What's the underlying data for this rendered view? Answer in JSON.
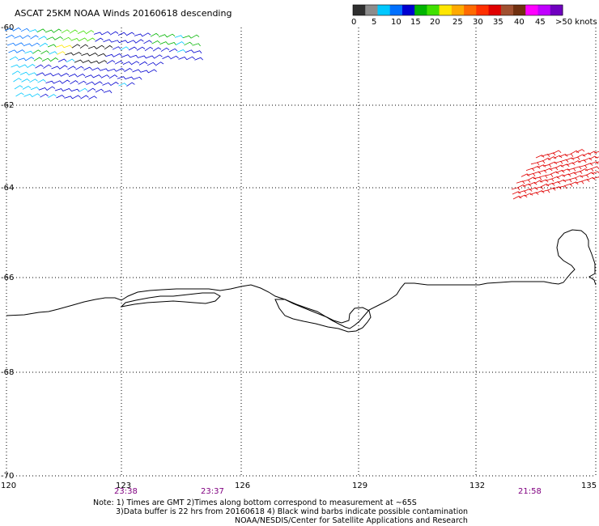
{
  "title": "ASCAT 25KM NOAA Winds 20160618 descending",
  "colorbar": {
    "labels": [
      "0",
      "5",
      "10",
      "15",
      "20",
      "25",
      "30",
      "35",
      "40",
      "45",
      ">50 knots"
    ],
    "colors": [
      "#2f2f2f",
      "#8c8c8c",
      "#00c8ff",
      "#0070ff",
      "#0000d0",
      "#00b400",
      "#40e000",
      "#ffe600",
      "#ffaa00",
      "#ff6a00",
      "#ff3000",
      "#e00000",
      "#a05030",
      "#703010",
      "#ff00ff",
      "#c000ff",
      "#7000c0"
    ]
  },
  "lat_labels": [
    "-60",
    "-62",
    "-64",
    "-66",
    "-68",
    "-70"
  ],
  "lon_labels": [
    "120",
    "123",
    "126",
    "129",
    "132",
    "135"
  ],
  "times": [
    "23:38",
    "23:37",
    "21:58"
  ],
  "notes": [
    "Note: 1) Times are GMT 2)Times along bottom correspond to measurement at ~65S",
    "3)Data buffer is 22 hrs from 20160618 4) Black wind barbs indicate possible contamination",
    "NOAA/NESDIS/Center for Satellite Applications and Research"
  ]
}
